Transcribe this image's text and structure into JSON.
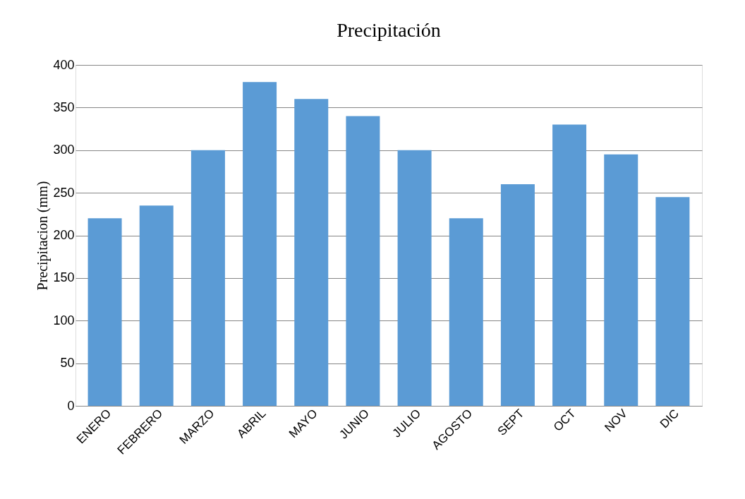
{
  "chart_data": {
    "type": "bar",
    "title": "Precipitación",
    "ylabel": "Precipitacion (mm)",
    "categories": [
      "ENERO",
      "FEBRERO",
      "MARZO",
      "ABRIL",
      "MAYO",
      "JUNIO",
      "JULIO",
      "AGOSTO",
      "SEPT",
      "OCT",
      "NOV",
      "DIC"
    ],
    "values": [
      220,
      235,
      300,
      380,
      360,
      340,
      300,
      220,
      260,
      330,
      295,
      245
    ],
    "color": "#5b9bd5",
    "ylim": [
      0,
      400
    ],
    "yticks": [
      0,
      50,
      100,
      150,
      200,
      250,
      300,
      350,
      400
    ],
    "grid": "y"
  }
}
